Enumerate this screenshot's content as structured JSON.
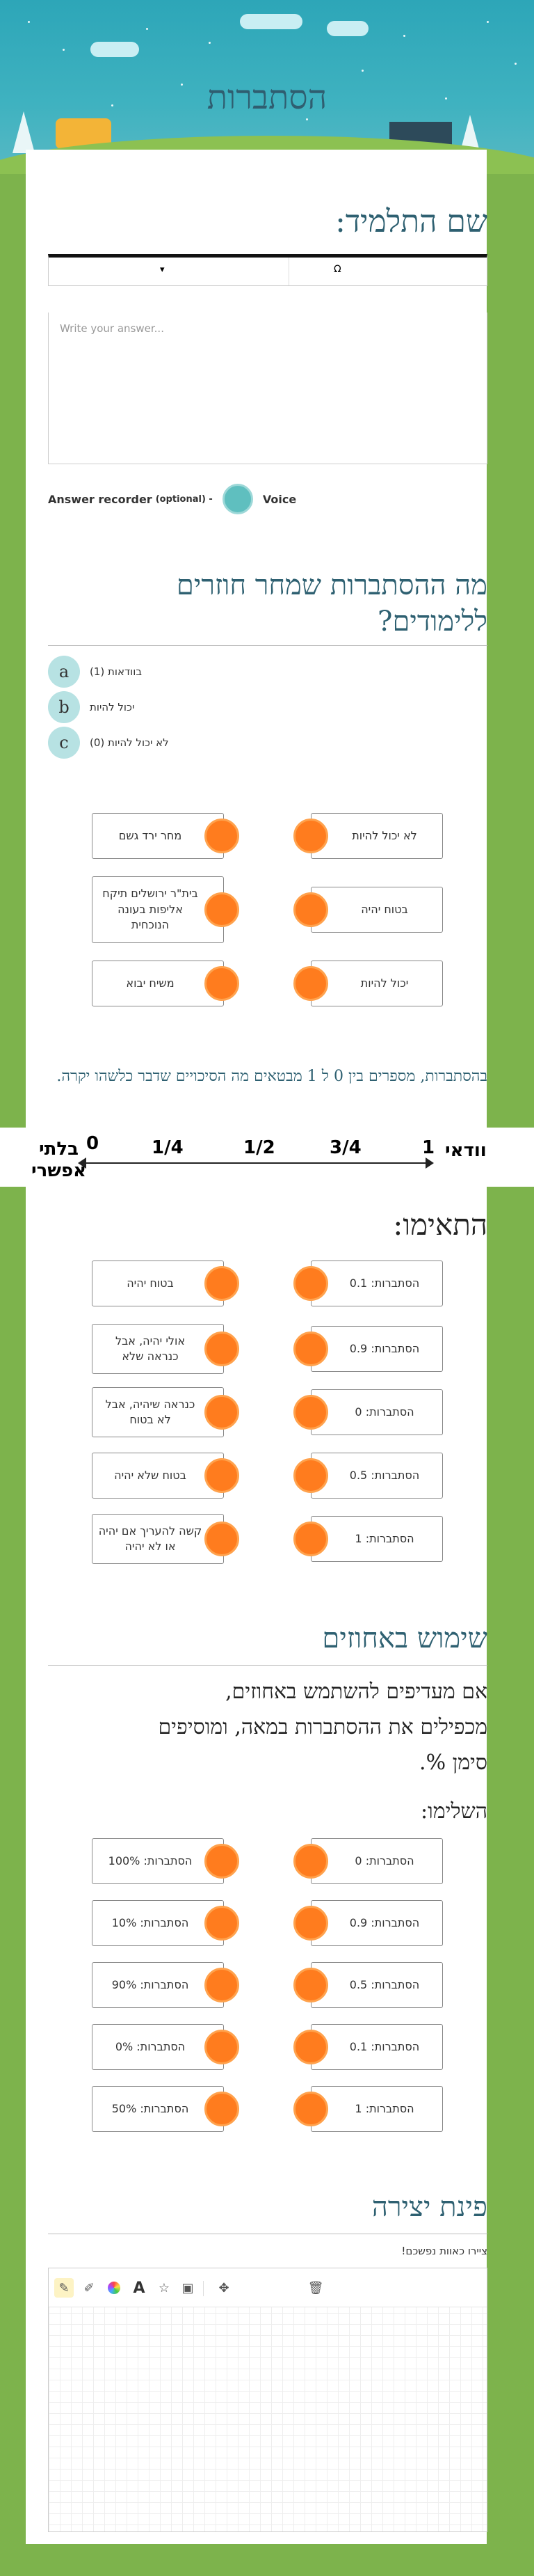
{
  "header": {
    "title": "הסתברות"
  },
  "student": {
    "heading": "שם התלמיד:",
    "toolbar_left": "▾",
    "toolbar_right": "Ω",
    "answer_placeholder": "Write your answer...",
    "recorder_label": "Answer recorder",
    "recorder_optional": "(optional) -",
    "voice_label": "Voice"
  },
  "q1": {
    "title_line1": "מה ההסתברות שמחר חוזרים",
    "title_line2": "ללימודים?",
    "options": [
      {
        "letter": "a",
        "label": "בוודאות (1)"
      },
      {
        "letter": "b",
        "label": "יכול להיות"
      },
      {
        "letter": "c",
        "label": "לא יכול להיות (0)"
      }
    ]
  },
  "match1": {
    "left": [
      "מחר ירד גשם",
      "בית\"ר ירושלים תיקח אליפות בעונה הנוכחית",
      "משיח יבוא"
    ],
    "right": [
      "לא יכול להיות",
      "בטוח יהיה",
      "יכול להיות"
    ]
  },
  "scale": {
    "desc": "בהסתברות, מספרים בין 0 ל 1 מבטאים מה הסיכויים שדבר כלשהו יקרה.",
    "sure": "וודאי",
    "one": "1",
    "three_quarters": "3/4",
    "half": "1/2",
    "quarter": "1/4",
    "zero": "0",
    "impossible_line1": "בלתי",
    "impossible_line2": "אפשרי"
  },
  "match2": {
    "heading": "התאימו:",
    "left": [
      "בטוח יהיה",
      "אולי יהיה, אבל כנראה שלא",
      "כנראה שיהיה, אבל לא בטוח",
      "בטוח שלא יהיה",
      "קשה להעריך אם יהיה או לא יהיה"
    ],
    "right": [
      "הסתברות: 0.1",
      "הסתברות: 0.9",
      "הסתברות: 0",
      "הסתברות: 0.5",
      "הסתברות: 1"
    ]
  },
  "percent": {
    "heading": "שימוש באחוזים",
    "line1": "אם מעדיפים להשתמש באחוזים,",
    "line2": "מכפילים את ההסתברות במאה, ומוסיפים",
    "line3": "סימן %.",
    "complete": "השלימו:",
    "left": [
      "הסתברות: 100%",
      "הסתברות: 10%",
      "הסתברות: 90%",
      "הסתברות: 0%",
      "הסתברות: 50%"
    ],
    "right": [
      "הסתברות: 0",
      "הסתברות: 0.9",
      "הסתברות: 0.5",
      "הסתברות: 0.1",
      "הסתברות: 1"
    ]
  },
  "creative": {
    "heading": "פינת יצירה",
    "subtitle": "ציירו כאוות נפשכם!",
    "tools": {
      "text": "A"
    }
  },
  "colors": {
    "accent": "#ff7c1e",
    "teal": "#5fbfbf",
    "heading": "#2e6071"
  }
}
